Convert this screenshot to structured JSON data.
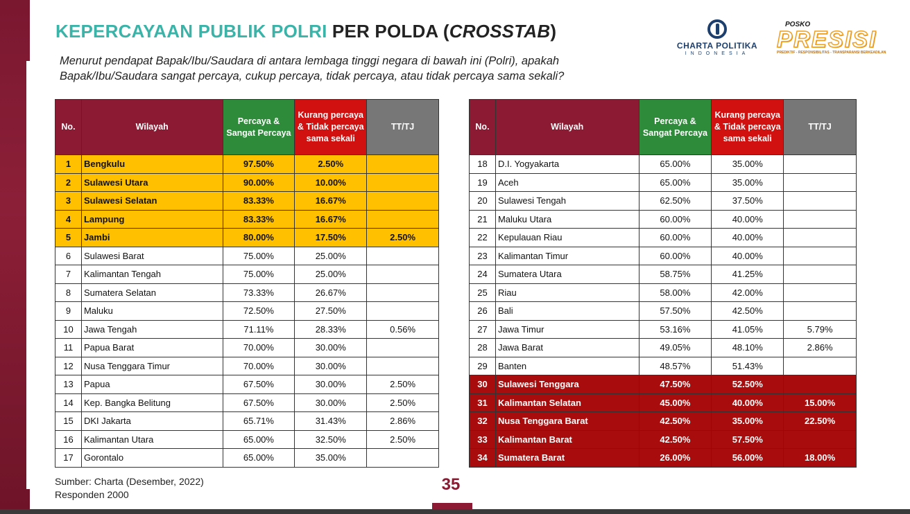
{
  "title": {
    "part1": "KEPERCAYAAN PUBLIK POLRI",
    "part2": " PER POLDA (",
    "part3": "CROSSTAB",
    "part4": ")"
  },
  "question": "Menurut pendapat Bapak/Ibu/Saudara di antara lembaga tinggi negara di bawah ini (Polri), apakah Bapak/Ibu/Saudara sangat percaya, cukup percaya, tidak percaya, atau tidak percaya sama sekali?",
  "logos": {
    "charta_name": "CHARTA POLITIKA",
    "charta_sub": "INDONESIA",
    "presisi_top": "POSKO",
    "presisi_word": "PRESISI",
    "presisi_tag": "PREDIKTIF - RESPONSIBILITAS - TRANSPARANSI BERKEADILAN"
  },
  "colors": {
    "maroon": "#8b1a32",
    "teal": "#3ab3a8",
    "gold": "#ffc000",
    "dark_red": "#a80c0c",
    "green": "#2e8b3a",
    "red": "#d11010",
    "gray": "#777777"
  },
  "left_table": {
    "headers": {
      "no": "No.",
      "wilayah": "Wilayah",
      "percaya": "Percaya & Sangat Percaya",
      "kurang": "Kurang percaya & Tidak percaya sama sekali",
      "tt": "TT/TJ"
    },
    "rows": [
      {
        "no": "1",
        "wilayah": "Bengkulu",
        "percaya": "97.50%",
        "kurang": "2.50%",
        "tt": "",
        "style": "hi-top"
      },
      {
        "no": "2",
        "wilayah": "Sulawesi Utara",
        "percaya": "90.00%",
        "kurang": "10.00%",
        "tt": "",
        "style": "hi-top"
      },
      {
        "no": "3",
        "wilayah": "Sulawesi Selatan",
        "percaya": "83.33%",
        "kurang": "16.67%",
        "tt": "",
        "style": "hi-top"
      },
      {
        "no": "4",
        "wilayah": "Lampung",
        "percaya": "83.33%",
        "kurang": "16.67%",
        "tt": "",
        "style": "hi-top"
      },
      {
        "no": "5",
        "wilayah": "Jambi",
        "percaya": "80.00%",
        "kurang": "17.50%",
        "tt": "2.50%",
        "style": "hi-top"
      },
      {
        "no": "6",
        "wilayah": "Sulawesi Barat",
        "percaya": "75.00%",
        "kurang": "25.00%",
        "tt": "",
        "style": "norm"
      },
      {
        "no": "7",
        "wilayah": "Kalimantan Tengah",
        "percaya": "75.00%",
        "kurang": "25.00%",
        "tt": "",
        "style": "norm"
      },
      {
        "no": "8",
        "wilayah": "Sumatera Selatan",
        "percaya": "73.33%",
        "kurang": "26.67%",
        "tt": "",
        "style": "norm"
      },
      {
        "no": "9",
        "wilayah": "Maluku",
        "percaya": "72.50%",
        "kurang": "27.50%",
        "tt": "",
        "style": "norm"
      },
      {
        "no": "10",
        "wilayah": "Jawa Tengah",
        "percaya": "71.11%",
        "kurang": "28.33%",
        "tt": "0.56%",
        "style": "norm"
      },
      {
        "no": "11",
        "wilayah": "Papua Barat",
        "percaya": "70.00%",
        "kurang": "30.00%",
        "tt": "",
        "style": "norm"
      },
      {
        "no": "12",
        "wilayah": "Nusa Tenggara Timur",
        "percaya": "70.00%",
        "kurang": "30.00%",
        "tt": "",
        "style": "norm"
      },
      {
        "no": "13",
        "wilayah": "Papua",
        "percaya": "67.50%",
        "kurang": "30.00%",
        "tt": "2.50%",
        "style": "norm"
      },
      {
        "no": "14",
        "wilayah": "Kep. Bangka Belitung",
        "percaya": "67.50%",
        "kurang": "30.00%",
        "tt": "2.50%",
        "style": "norm"
      },
      {
        "no": "15",
        "wilayah": "DKI Jakarta",
        "percaya": "65.71%",
        "kurang": "31.43%",
        "tt": "2.86%",
        "style": "norm"
      },
      {
        "no": "16",
        "wilayah": "Kalimantan Utara",
        "percaya": "65.00%",
        "kurang": "32.50%",
        "tt": "2.50%",
        "style": "norm"
      },
      {
        "no": "17",
        "wilayah": "Gorontalo",
        "percaya": "65.00%",
        "kurang": "35.00%",
        "tt": "",
        "style": "norm"
      }
    ]
  },
  "right_table": {
    "headers": {
      "no": "No.",
      "wilayah": "Wilayah",
      "percaya": "Percaya & Sangat Percaya",
      "kurang": "Kurang percaya & Tidak percaya sama sekali",
      "tt": "TT/TJ"
    },
    "rows": [
      {
        "no": "18",
        "wilayah": "D.I. Yogyakarta",
        "percaya": "65.00%",
        "kurang": "35.00%",
        "tt": "",
        "style": "norm"
      },
      {
        "no": "19",
        "wilayah": "Aceh",
        "percaya": "65.00%",
        "kurang": "35.00%",
        "tt": "",
        "style": "norm"
      },
      {
        "no": "20",
        "wilayah": "Sulawesi Tengah",
        "percaya": "62.50%",
        "kurang": "37.50%",
        "tt": "",
        "style": "norm"
      },
      {
        "no": "21",
        "wilayah": "Maluku Utara",
        "percaya": "60.00%",
        "kurang": "40.00%",
        "tt": "",
        "style": "norm"
      },
      {
        "no": "22",
        "wilayah": "Kepulauan Riau",
        "percaya": "60.00%",
        "kurang": "40.00%",
        "tt": "",
        "style": "norm"
      },
      {
        "no": "23",
        "wilayah": "Kalimantan Timur",
        "percaya": "60.00%",
        "kurang": "40.00%",
        "tt": "",
        "style": "norm"
      },
      {
        "no": "24",
        "wilayah": "Sumatera Utara",
        "percaya": "58.75%",
        "kurang": "41.25%",
        "tt": "",
        "style": "norm"
      },
      {
        "no": "25",
        "wilayah": "Riau",
        "percaya": "58.00%",
        "kurang": "42.00%",
        "tt": "",
        "style": "norm"
      },
      {
        "no": "26",
        "wilayah": "Bali",
        "percaya": "57.50%",
        "kurang": "42.50%",
        "tt": "",
        "style": "norm"
      },
      {
        "no": "27",
        "wilayah": "Jawa Timur",
        "percaya": "53.16%",
        "kurang": "41.05%",
        "tt": "5.79%",
        "style": "norm"
      },
      {
        "no": "28",
        "wilayah": "Jawa Barat",
        "percaya": "49.05%",
        "kurang": "48.10%",
        "tt": "2.86%",
        "style": "norm"
      },
      {
        "no": "29",
        "wilayah": "Banten",
        "percaya": "48.57%",
        "kurang": "51.43%",
        "tt": "",
        "style": "norm"
      },
      {
        "no": "30",
        "wilayah": "Sulawesi Tenggara",
        "percaya": "47.50%",
        "kurang": "52.50%",
        "tt": "",
        "style": "hi-bottom"
      },
      {
        "no": "31",
        "wilayah": "Kalimantan Selatan",
        "percaya": "45.00%",
        "kurang": "40.00%",
        "tt": "15.00%",
        "style": "hi-bottom"
      },
      {
        "no": "32",
        "wilayah": "Nusa Tenggara Barat",
        "percaya": "42.50%",
        "kurang": "35.00%",
        "tt": "22.50%",
        "style": "hi-bottom"
      },
      {
        "no": "33",
        "wilayah": "Kalimantan Barat",
        "percaya": "42.50%",
        "kurang": "57.50%",
        "tt": "",
        "style": "hi-bottom"
      },
      {
        "no": "34",
        "wilayah": "Sumatera Barat",
        "percaya": "26.00%",
        "kurang": "56.00%",
        "tt": "18.00%",
        "style": "hi-bottom"
      }
    ]
  },
  "footer": {
    "source": "Sumber: Charta (Desember, 2022)",
    "respondents": "Responden 2000",
    "page_number": "35"
  }
}
